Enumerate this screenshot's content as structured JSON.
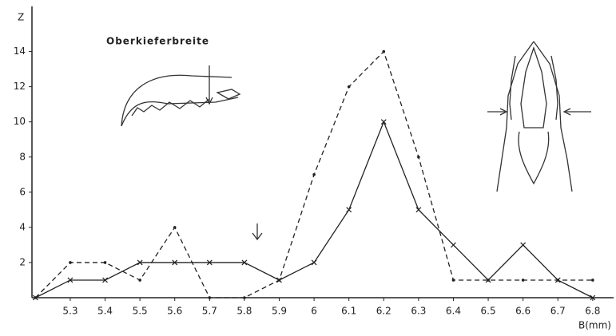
{
  "chart_data": {
    "type": "line",
    "annotation": "Oberkieferbreite",
    "x_label": "B(mm)",
    "y_label": "Z",
    "x": [
      5.2,
      5.3,
      5.4,
      5.5,
      5.6,
      5.7,
      5.8,
      5.9,
      6.0,
      6.1,
      6.2,
      6.3,
      6.4,
      6.5,
      6.6,
      6.7,
      6.8
    ],
    "series": [
      {
        "color": "#222222",
        "dashed": true,
        "values": [
          0,
          2,
          2,
          1,
          4,
          0,
          0,
          1,
          7,
          12,
          14,
          8,
          1,
          1,
          1,
          1,
          1
        ]
      },
      {
        "color": "#222222",
        "dashed": false,
        "values": [
          0,
          1,
          1,
          2,
          2,
          2,
          2,
          1,
          2,
          5,
          10,
          5,
          3,
          1,
          3,
          1,
          0
        ]
      }
    ],
    "xlim": [
      5.19,
      6.86
    ],
    "ylim": [
      0,
      16.5
    ],
    "xticks": [
      5.3,
      5.4,
      5.5,
      5.6,
      5.7,
      5.8,
      5.9,
      6.0,
      6.1,
      6.2,
      6.3,
      6.4,
      6.5,
      6.6,
      6.7,
      6.8
    ],
    "yticks": [
      2,
      4,
      6,
      8,
      10,
      12,
      14
    ]
  }
}
